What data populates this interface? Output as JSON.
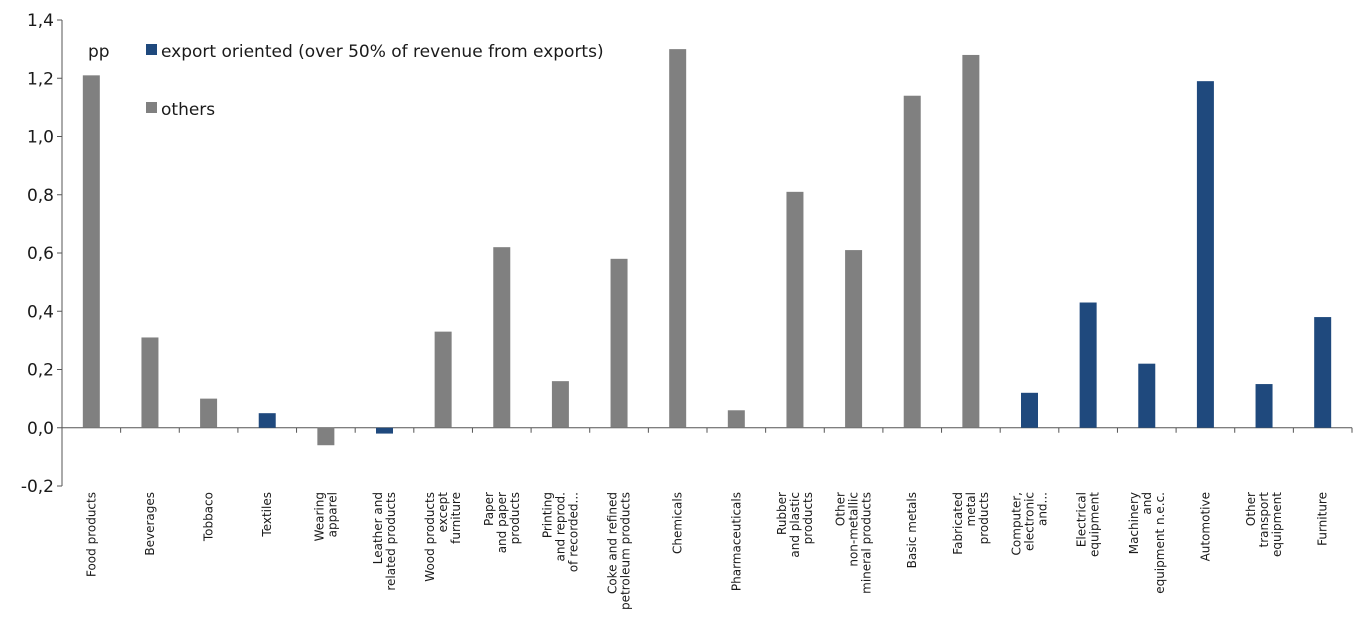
{
  "chart_data": {
    "type": "bar",
    "title": "",
    "unit_label": "pp",
    "xlabel": "",
    "ylabel": "",
    "ylim": [
      -0.2,
      1.4
    ],
    "yticks": [
      "-0,2",
      "0,0",
      "0,2",
      "0,4",
      "0,6",
      "0,8",
      "1,0",
      "1,2",
      "1,4"
    ],
    "grid": false,
    "legend_position": "top-left",
    "colors": {
      "export": "#1f497d",
      "others": "#808080"
    },
    "series": [
      {
        "name": "export oriented (over 50% of revenue from exports)",
        "key": "export"
      },
      {
        "name": "others",
        "key": "others"
      }
    ],
    "categories": [
      [
        "Food products"
      ],
      [
        "Beverages"
      ],
      [
        "Tobbaco"
      ],
      [
        "Textiles"
      ],
      [
        "Wearing",
        "apparel"
      ],
      [
        "Leather and",
        "related products"
      ],
      [
        "Wood products",
        "except",
        "furniture"
      ],
      [
        "Paper",
        "and paper",
        "products"
      ],
      [
        "Printing",
        "and reprod.",
        "of recorded..."
      ],
      [
        "Coke and refined",
        "petroleum products"
      ],
      [
        "Chemicals"
      ],
      [
        "Pharmaceuticals"
      ],
      [
        "Rubber",
        "and plastic",
        "products"
      ],
      [
        "Other",
        "non-metallic",
        "mineral products"
      ],
      [
        "Basic metals"
      ],
      [
        "Fabricated",
        "metal",
        "products"
      ],
      [
        "Computer,",
        "electronic",
        "and..."
      ],
      [
        "Electrical",
        "equipment"
      ],
      [
        "Machinery",
        "and",
        "equipment n.e.c."
      ],
      [
        "Automotive"
      ],
      [
        "Other",
        "transport",
        "equipment"
      ],
      [
        "Furniture"
      ]
    ],
    "bars": [
      {
        "category": 0,
        "value": 1.21,
        "series": "others"
      },
      {
        "category": 1,
        "value": 0.31,
        "series": "others"
      },
      {
        "category": 2,
        "value": 0.1,
        "series": "others"
      },
      {
        "category": 3,
        "value": 0.05,
        "series": "export"
      },
      {
        "category": 4,
        "value": -0.06,
        "series": "others"
      },
      {
        "category": 5,
        "value": -0.02,
        "series": "export"
      },
      {
        "category": 6,
        "value": 0.33,
        "series": "others"
      },
      {
        "category": 7,
        "value": 0.62,
        "series": "others"
      },
      {
        "category": 8,
        "value": 0.16,
        "series": "others"
      },
      {
        "category": 9,
        "value": 0.58,
        "series": "others"
      },
      {
        "category": 10,
        "value": 1.3,
        "series": "others"
      },
      {
        "category": 11,
        "value": 0.06,
        "series": "others"
      },
      {
        "category": 12,
        "value": 0.81,
        "series": "others"
      },
      {
        "category": 13,
        "value": 0.61,
        "series": "others"
      },
      {
        "category": 14,
        "value": 1.14,
        "series": "others"
      },
      {
        "category": 15,
        "value": 1.28,
        "series": "others"
      },
      {
        "category": 16,
        "value": 0.12,
        "series": "export"
      },
      {
        "category": 17,
        "value": 0.43,
        "series": "export"
      },
      {
        "category": 18,
        "value": 0.22,
        "series": "export"
      },
      {
        "category": 19,
        "value": 1.19,
        "series": "export"
      },
      {
        "category": 20,
        "value": 0.15,
        "series": "export"
      },
      {
        "category": 21,
        "value": 0.38,
        "series": "export"
      }
    ]
  }
}
